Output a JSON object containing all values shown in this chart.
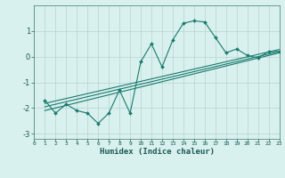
{
  "xlabel": "Humidex (Indice chaleur)",
  "background_color": "#d8f0ee",
  "line_color": "#1a7a6e",
  "grid_color": "#b8d4d0",
  "tick_color": "#1a5a50",
  "xlim": [
    0,
    23
  ],
  "ylim": [
    -3.2,
    2.0
  ],
  "yticks": [
    -3,
    -2,
    -1,
    0,
    1
  ],
  "xticks": [
    0,
    1,
    2,
    3,
    4,
    5,
    6,
    7,
    8,
    9,
    10,
    11,
    12,
    13,
    14,
    15,
    16,
    17,
    18,
    19,
    20,
    21,
    22,
    23
  ],
  "main_x": [
    1,
    2,
    3,
    4,
    5,
    6,
    7,
    8,
    9,
    10,
    11,
    12,
    13,
    14,
    15,
    16,
    17,
    18,
    19,
    20,
    21,
    22,
    23
  ],
  "main_y": [
    -1.7,
    -2.2,
    -1.85,
    -2.1,
    -2.2,
    -2.6,
    -2.2,
    -1.3,
    -2.2,
    -0.2,
    0.5,
    -0.4,
    0.65,
    1.3,
    1.4,
    1.35,
    0.75,
    0.15,
    0.3,
    0.05,
    -0.05,
    0.2,
    0.2
  ],
  "line1_x": [
    1,
    23
  ],
  "line1_y": [
    -2.1,
    0.15
  ],
  "line2_x": [
    1,
    23
  ],
  "line2_y": [
    -1.95,
    0.2
  ],
  "line3_x": [
    1,
    23
  ],
  "line3_y": [
    -1.82,
    0.28
  ]
}
